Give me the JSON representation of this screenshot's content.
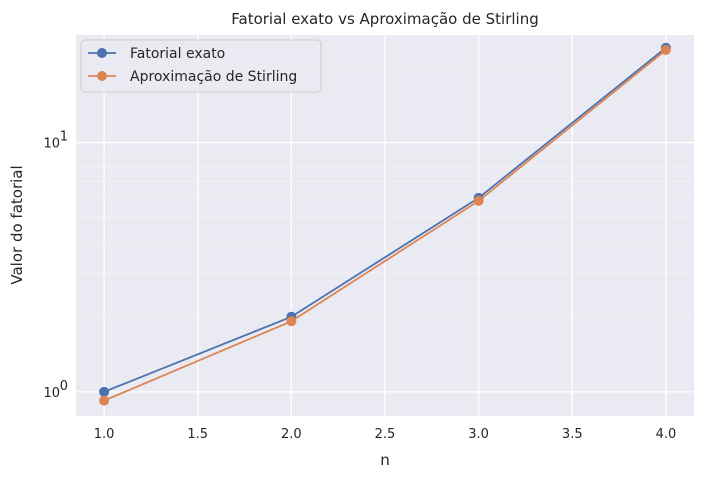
{
  "chart_data": {
    "type": "line",
    "title": "Fatorial exato vs Aproximação de Stirling",
    "xlabel": "n",
    "ylabel": "Valor do fatorial",
    "yscale": "log",
    "x": [
      1.0,
      2.0,
      3.0,
      4.0
    ],
    "xticks": [
      "1.0",
      "1.5",
      "2.0",
      "2.5",
      "3.0",
      "3.5",
      "4.0"
    ],
    "xtick_values": [
      1.0,
      1.5,
      2.0,
      2.5,
      3.0,
      3.5,
      4.0
    ],
    "yticks": [
      {
        "value": 1,
        "base": "10",
        "exp": "0"
      },
      {
        "value": 10,
        "base": "10",
        "exp": "1"
      }
    ],
    "xlim": [
      0.85,
      4.15
    ],
    "ylim": [
      0.8,
      27.0
    ],
    "grid": true,
    "legend_position": "top-left",
    "series": [
      {
        "name": "Fatorial exato",
        "color": "#4c72b0",
        "values": [
          1,
          2,
          6,
          24
        ]
      },
      {
        "name": "Aproximação de Stirling",
        "color": "#dd8452",
        "values": [
          0.922,
          1.919,
          5.836,
          23.506
        ]
      }
    ],
    "background": "#eaeaf2"
  }
}
